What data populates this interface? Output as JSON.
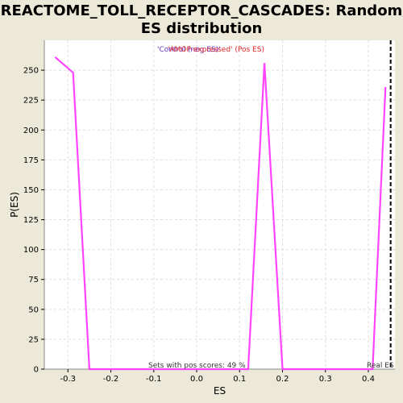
{
  "title_line1": "REACTOME_TOLL_RECEPTOR_CASCADES: Random",
  "title_line2": "ES distribution",
  "colors": {
    "curve": "#ff44ff",
    "neg_legend": "#6633cc",
    "pos_legend": "#dd2222",
    "grid": "#dddddd",
    "plot_bg": "#ffffff",
    "real_es_line": "#000000"
  },
  "chart_data": {
    "type": "line",
    "title": "REACTOME_TOLL_RECEPTOR_CASCADES: Random ES distribution",
    "xlabel": "ES",
    "ylabel": "P(ES)",
    "xlim": [
      -0.355,
      0.462
    ],
    "ylim": [
      0,
      275
    ],
    "x_ticks": [
      -0.3,
      -0.2,
      -0.1,
      0.0,
      0.1,
      0.2,
      0.3,
      0.4
    ],
    "x_tick_labels": [
      "-0.3",
      "-0.2",
      "-0.1",
      "0.0",
      "0.1",
      "0.2",
      "0.3",
      "0.4"
    ],
    "y_ticks": [
      0,
      25,
      50,
      75,
      100,
      125,
      150,
      175,
      200,
      225,
      250
    ],
    "y_tick_labels": [
      "0",
      "25",
      "50",
      "75",
      "100",
      "125",
      "150",
      "175",
      "200",
      "225",
      "250"
    ],
    "grid": true,
    "series": [
      {
        "x": [
          -0.33,
          -0.288,
          -0.25,
          0.12,
          0.158,
          0.2,
          0.41,
          0.44
        ],
        "y": [
          261,
          248,
          0,
          0,
          256,
          0,
          0,
          236
        ]
      }
    ],
    "legend": [
      "'Control (neg ES)'",
      "'AMOP-expressed' (Pos ES)"
    ],
    "real_es": 0.452,
    "real_es_label": "Real ES",
    "annotation": "Sets with pos scores: 49 %"
  }
}
